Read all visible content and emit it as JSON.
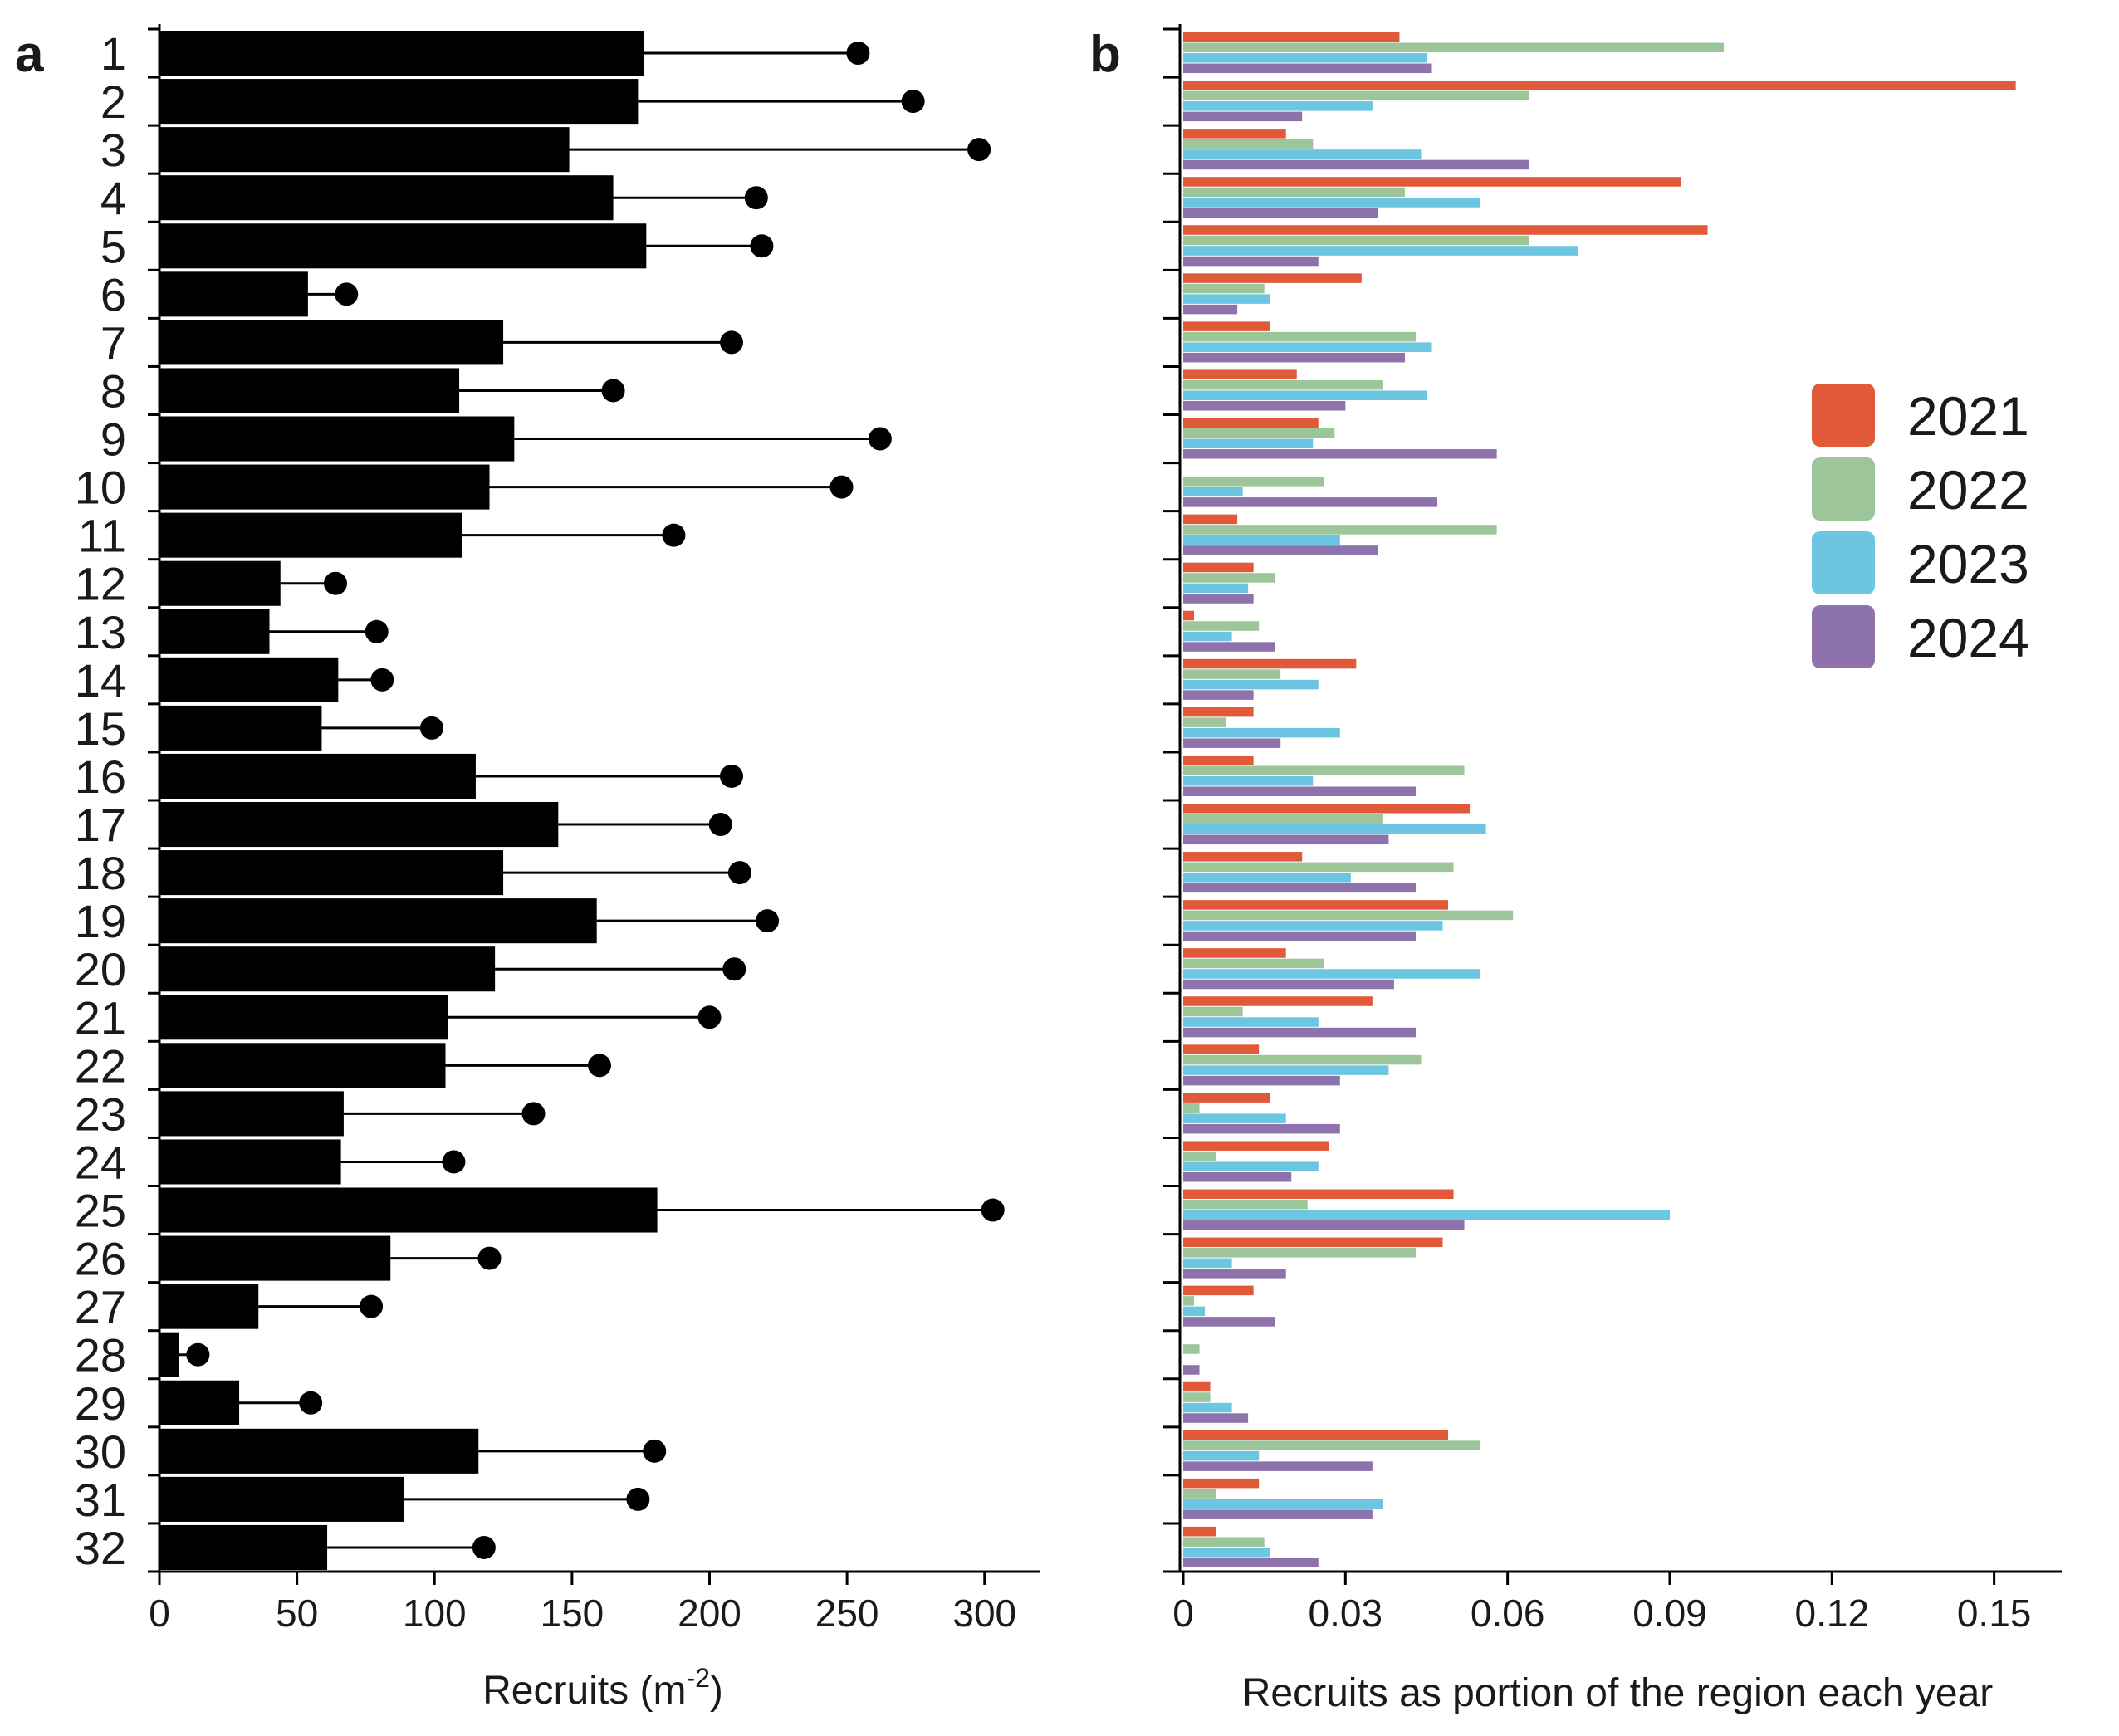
{
  "chart_data": [
    {
      "panel": "a",
      "type": "bar",
      "orientation": "horizontal",
      "categories": [
        "1",
        "2",
        "3",
        "4",
        "5",
        "6",
        "7",
        "8",
        "9",
        "10",
        "11",
        "12",
        "13",
        "14",
        "15",
        "16",
        "17",
        "18",
        "19",
        "20",
        "21",
        "22",
        "23",
        "24",
        "25",
        "26",
        "27",
        "28",
        "29",
        "30",
        "31",
        "32"
      ],
      "series": [
        {
          "name": "bar",
          "color": "#000000",
          "values": [
            176,
            174,
            149,
            165,
            177,
            54,
            125,
            109,
            129,
            120,
            110,
            44,
            40,
            65,
            59,
            115,
            145,
            125,
            159,
            122,
            105,
            104,
            67,
            66,
            181,
            84,
            36,
            7,
            29,
            116,
            89,
            61
          ]
        },
        {
          "name": "lollipop",
          "color": "#000000",
          "values": [
            254,
            274,
            298,
            217,
            219,
            68,
            208,
            165,
            262,
            248,
            187,
            64,
            79,
            81,
            99,
            208,
            204,
            211,
            221,
            209,
            200,
            160,
            136,
            107,
            303,
            120,
            77,
            14,
            55,
            180,
            174,
            118
          ]
        }
      ],
      "title": "",
      "xlabel": "Recruits (m-2)",
      "xlabel_main": "Recruits (m",
      "xlabel_sup": "-2",
      "xlabel_close": ")",
      "xlim": [
        0,
        320
      ],
      "xticks": [
        "0",
        "50",
        "100",
        "150",
        "200",
        "250",
        "300"
      ],
      "ylabel": ""
    },
    {
      "panel": "b",
      "type": "bar",
      "orientation": "horizontal",
      "categories": [
        "1",
        "2",
        "3",
        "4",
        "5",
        "6",
        "7",
        "8",
        "9",
        "10",
        "11",
        "12",
        "13",
        "14",
        "15",
        "16",
        "17",
        "18",
        "19",
        "20",
        "21",
        "22",
        "23",
        "24",
        "25",
        "26",
        "27",
        "28",
        "29",
        "30",
        "31",
        "32"
      ],
      "series": [
        {
          "name": "2021",
          "color": "#e05a3a",
          "values": [
            0.04,
            0.154,
            0.019,
            0.092,
            0.097,
            0.033,
            0.016,
            0.021,
            0.025,
            0.0,
            0.01,
            0.013,
            0.002,
            0.032,
            0.013,
            0.013,
            0.053,
            0.022,
            0.049,
            0.019,
            0.035,
            0.014,
            0.016,
            0.027,
            0.05,
            0.048,
            0.013,
            0.0,
            0.005,
            0.049,
            0.014,
            0.006
          ]
        },
        {
          "name": "2022",
          "color": "#9cc59a",
          "values": [
            0.1,
            0.064,
            0.024,
            0.041,
            0.064,
            0.015,
            0.043,
            0.037,
            0.028,
            0.026,
            0.058,
            0.017,
            0.014,
            0.018,
            0.008,
            0.052,
            0.037,
            0.05,
            0.061,
            0.026,
            0.011,
            0.044,
            0.003,
            0.006,
            0.023,
            0.043,
            0.002,
            0.003,
            0.005,
            0.055,
            0.006,
            0.015
          ]
        },
        {
          "name": "2023",
          "color": "#6cc5e1",
          "values": [
            0.045,
            0.035,
            0.044,
            0.055,
            0.073,
            0.016,
            0.046,
            0.045,
            0.024,
            0.011,
            0.029,
            0.012,
            0.009,
            0.025,
            0.029,
            0.024,
            0.056,
            0.031,
            0.048,
            0.055,
            0.025,
            0.038,
            0.019,
            0.025,
            0.09,
            0.009,
            0.004,
            0.0,
            0.009,
            0.014,
            0.037,
            0.016
          ]
        },
        {
          "name": "2024",
          "color": "#8e72ab",
          "values": [
            0.046,
            0.022,
            0.064,
            0.036,
            0.025,
            0.01,
            0.041,
            0.03,
            0.058,
            0.047,
            0.036,
            0.013,
            0.017,
            0.013,
            0.018,
            0.043,
            0.038,
            0.043,
            0.043,
            0.039,
            0.043,
            0.029,
            0.029,
            0.02,
            0.052,
            0.019,
            0.017,
            0.003,
            0.012,
            0.035,
            0.035,
            0.025
          ]
        }
      ],
      "title": "",
      "xlabel": "Recruits as portion of the region each year",
      "xlim": [
        0,
        0.1625
      ],
      "xticks": [
        "0",
        "0.03",
        "0.06",
        "0.09",
        "0.12",
        "0.15"
      ],
      "legend": [
        "2021",
        "2022",
        "2023",
        "2024"
      ],
      "legend_position": "right"
    }
  ]
}
